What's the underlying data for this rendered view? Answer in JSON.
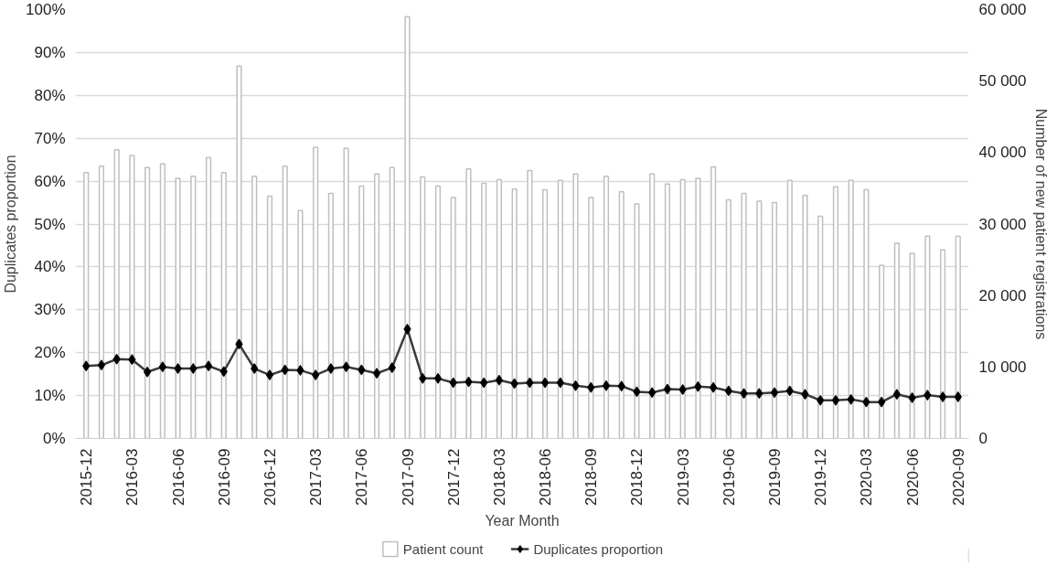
{
  "chart_data": {
    "type": "bar",
    "xlabel": "Year Month",
    "ylabel": "Duplicates proportion",
    "y2label": "Number of new patient registrations",
    "categories": [
      "2015-12",
      null,
      null,
      "2016-03",
      null,
      null,
      "2016-06",
      null,
      null,
      "2016-09",
      null,
      null,
      "2016-12",
      null,
      null,
      "2017-03",
      null,
      null,
      "2017-06",
      null,
      null,
      "2017-09",
      null,
      null,
      "2017-12",
      null,
      null,
      "2018-03",
      null,
      null,
      "2018-06",
      null,
      null,
      "2018-09",
      null,
      null,
      "2018-12",
      null,
      null,
      "2019-03",
      null,
      null,
      "2019-06",
      null,
      null,
      "2019-09",
      null,
      null,
      "2019-12",
      null,
      null,
      "2020-03",
      null,
      null,
      "2020-06",
      null,
      null,
      "2020-09"
    ],
    "series": [
      {
        "name": "Patient count",
        "axis": "y2",
        "color": "#bfbfbf",
        "values": [
          37200,
          38100,
          40400,
          39600,
          37900,
          38400,
          36400,
          36700,
          39300,
          37200,
          52100,
          36700,
          33900,
          38100,
          31900,
          40700,
          34300,
          40600,
          35300,
          37000,
          37900,
          59000,
          36600,
          35300,
          33700,
          37700,
          35700,
          36200,
          34900,
          37500,
          34800,
          36100,
          37000,
          33700,
          36700,
          34500,
          32800,
          37000,
          35600,
          36200,
          36400,
          38000,
          33400,
          34300,
          33200,
          33000,
          36100,
          34000,
          31100,
          35200,
          36100,
          34800,
          24200,
          27300,
          25900,
          28300,
          26400,
          28300
        ]
      },
      {
        "name": "Duplicates proportion",
        "type": "line",
        "color": "#3a3a3a",
        "values": [
          16.9,
          17.1,
          18.5,
          18.4,
          15.5,
          16.7,
          16.3,
          16.3,
          16.9,
          15.6,
          22.0,
          16.3,
          14.8,
          16.0,
          15.9,
          14.8,
          16.3,
          16.7,
          16.0,
          15.2,
          16.5,
          25.5,
          14.0,
          14.0,
          13.0,
          13.2,
          13.0,
          13.6,
          12.8,
          13.0,
          13.0,
          13.0,
          12.3,
          11.9,
          12.3,
          12.2,
          10.9,
          10.7,
          11.5,
          11.4,
          12.1,
          11.9,
          11.1,
          10.5,
          10.5,
          10.7,
          11.1,
          10.3,
          8.9,
          8.9,
          9.1,
          8.5,
          8.5,
          10.3,
          9.5,
          10.1,
          9.7,
          9.7
        ]
      }
    ],
    "ylim": [
      0,
      100
    ],
    "yticks": [
      {
        "value": 0,
        "label": "0%"
      },
      {
        "value": 10,
        "label": "10%"
      },
      {
        "value": 20,
        "label": "20%"
      },
      {
        "value": 30,
        "label": "30%"
      },
      {
        "value": 40,
        "label": "40%"
      },
      {
        "value": 50,
        "label": "50%"
      },
      {
        "value": 60,
        "label": "60%"
      },
      {
        "value": 70,
        "label": "70%"
      },
      {
        "value": 80,
        "label": "80%"
      },
      {
        "value": 90,
        "label": "90%"
      },
      {
        "value": 100,
        "label": "100%"
      }
    ],
    "y2lim": [
      0,
      60000
    ],
    "y2ticks": [
      {
        "value": 0,
        "label": "0"
      },
      {
        "value": 10000,
        "label": "10 000"
      },
      {
        "value": 20000,
        "label": "20 000"
      },
      {
        "value": 30000,
        "label": "30 000"
      },
      {
        "value": 40000,
        "label": "40 000"
      },
      {
        "value": 50000,
        "label": "50 000"
      },
      {
        "value": 60000,
        "label": "60 000"
      }
    ],
    "grid": "y",
    "legend": "bottom",
    "marker": "diamond"
  }
}
